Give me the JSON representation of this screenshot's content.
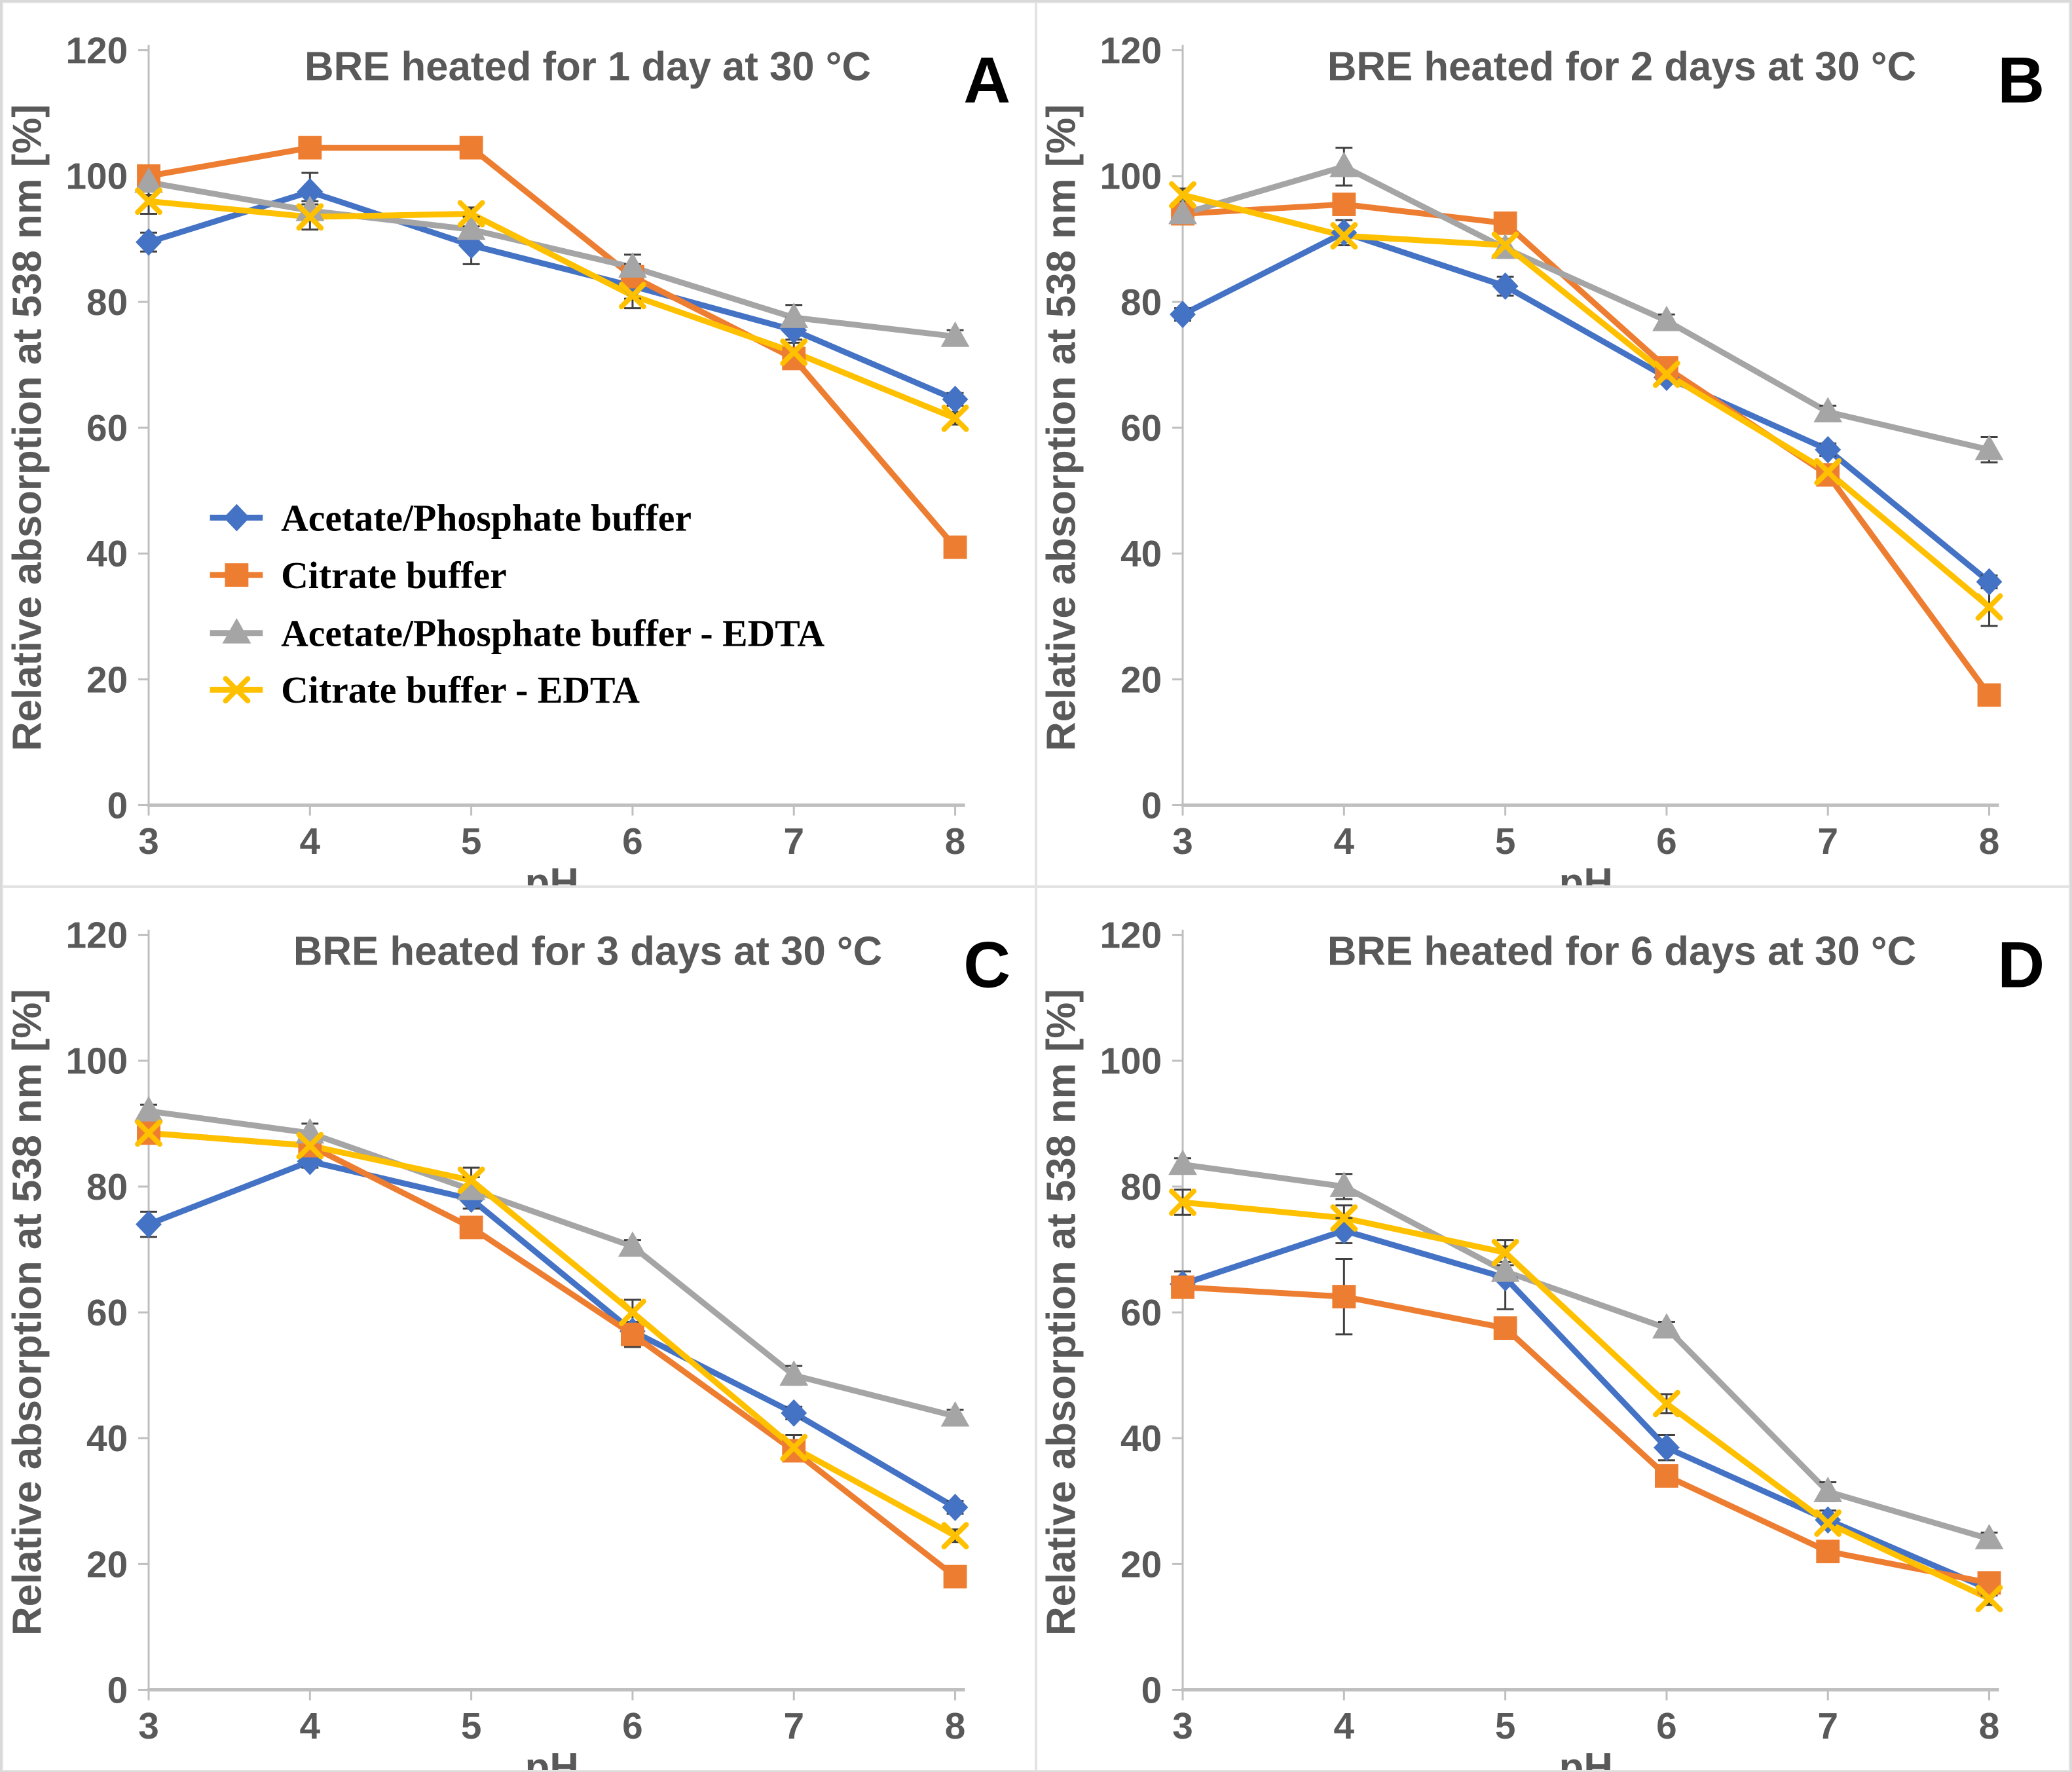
{
  "figure": {
    "background": "#ffffff",
    "border_color": "#d9d9d9",
    "panel_border_color": "#e3e3e3"
  },
  "style": {
    "axis_line_color": "#bfbfbf",
    "tick_label_color": "#595959",
    "title_color": "#595959",
    "panel_letter_color": "#000000",
    "error_bar_color": "#404040",
    "series_styles": {
      "ap": {
        "color": "#4472C4",
        "marker": "diamond",
        "icon_name": "blue-diamond-marker"
      },
      "cit": {
        "color": "#ED7D31",
        "marker": "square",
        "icon_name": "orange-square-marker"
      },
      "ap_edta": {
        "color": "#A5A5A5",
        "marker": "triangle",
        "icon_name": "gray-triangle-marker"
      },
      "cit_edta": {
        "color": "#FFC000",
        "marker": "x",
        "icon_name": "yellow-x-marker"
      }
    }
  },
  "legend": {
    "location": "panel A, middle left",
    "items": [
      {
        "label": "Acetate/Phosphate buffer",
        "style": "ap"
      },
      {
        "label": "Citrate buffer",
        "style": "cit"
      },
      {
        "label": "Acetate/Phosphate buffer - EDTA",
        "style": "ap_edta"
      },
      {
        "label": "Citrate buffer - EDTA",
        "style": "cit_edta"
      }
    ]
  },
  "chart_data": [
    {
      "type": "line",
      "panel_letter": "A",
      "title": "BRE heated for 1 day at 30 °C",
      "xlabel": "pH",
      "ylabel": "Relative absorption at 538 nm [%]",
      "x": [
        3,
        4,
        5,
        6,
        7,
        8
      ],
      "ylim": [
        0,
        120
      ],
      "y_ticks": [
        0,
        20,
        40,
        60,
        80,
        100,
        120
      ],
      "grid": false,
      "show_legend": true,
      "series": [
        {
          "name": "Acetate/Phosphate buffer",
          "style": "ap",
          "values": [
            89.5,
            97.5,
            89,
            82.5,
            75.5,
            64.5
          ],
          "errors": [
            1.5,
            3,
            3,
            2,
            2,
            1
          ]
        },
        {
          "name": "Citrate buffer",
          "style": "cit",
          "values": [
            100,
            104.5,
            104.5,
            84,
            71,
            41
          ],
          "errors": [
            1.5,
            1,
            1,
            2,
            1,
            1
          ]
        },
        {
          "name": "Acetate/Phosphate buffer - EDTA",
          "style": "ap_edta",
          "values": [
            99,
            94.5,
            91.5,
            85.5,
            77.5,
            74.5
          ],
          "errors": [
            2,
            1.5,
            2,
            2,
            2,
            1
          ]
        },
        {
          "name": "Citrate buffer - EDTA",
          "style": "cit_edta",
          "values": [
            96,
            93.5,
            94,
            81,
            72,
            61.5
          ],
          "errors": [
            2,
            2,
            1,
            2,
            2,
            1
          ]
        }
      ]
    },
    {
      "type": "line",
      "panel_letter": "B",
      "title": "BRE heated for 2 days at 30 °C",
      "xlabel": "pH",
      "ylabel": "Relative absorption at 538 nm [%]",
      "x": [
        3,
        4,
        5,
        6,
        7,
        8
      ],
      "ylim": [
        0,
        120
      ],
      "y_ticks": [
        0,
        20,
        40,
        60,
        80,
        100,
        120
      ],
      "grid": false,
      "show_legend": false,
      "series": [
        {
          "name": "Acetate/Phosphate buffer",
          "style": "ap",
          "values": [
            78,
            91,
            82.5,
            68,
            56.5,
            35.5
          ],
          "errors": [
            1,
            2,
            1.5,
            1,
            1,
            1
          ]
        },
        {
          "name": "Citrate buffer",
          "style": "cit",
          "values": [
            94,
            95.5,
            92.5,
            69.5,
            52.5,
            17.5
          ],
          "errors": [
            1,
            1,
            1,
            1.5,
            1,
            1
          ]
        },
        {
          "name": "Acetate/Phosphate buffer - EDTA",
          "style": "ap_edta",
          "values": [
            94,
            101.5,
            88.5,
            77,
            62.5,
            56.5
          ],
          "errors": [
            1.5,
            3,
            1.5,
            1,
            1,
            2
          ]
        },
        {
          "name": "Citrate buffer - EDTA",
          "style": "cit_edta",
          "values": [
            97,
            90.5,
            89,
            68.5,
            53,
            31.5
          ],
          "errors": [
            1,
            1,
            1,
            1.5,
            1,
            3
          ]
        }
      ]
    },
    {
      "type": "line",
      "panel_letter": "C",
      "title": "BRE heated for 3 days at 30 °C",
      "xlabel": "pH",
      "ylabel": "Relative absorption at 538 nm [%]",
      "x": [
        3,
        4,
        5,
        6,
        7,
        8
      ],
      "ylim": [
        0,
        120
      ],
      "y_ticks": [
        0,
        20,
        40,
        60,
        80,
        100,
        120
      ],
      "grid": false,
      "show_legend": false,
      "series": [
        {
          "name": "Acetate/Phosphate buffer",
          "style": "ap",
          "values": [
            74,
            84,
            78,
            57,
            44,
            29
          ],
          "errors": [
            2,
            1,
            1.5,
            1,
            1,
            1
          ]
        },
        {
          "name": "Citrate buffer",
          "style": "cit",
          "values": [
            88.5,
            86.5,
            73.5,
            56.5,
            38,
            18
          ],
          "errors": [
            1.5,
            1,
            1,
            2,
            1,
            1
          ]
        },
        {
          "name": "Acetate/Phosphate buffer - EDTA",
          "style": "ap_edta",
          "values": [
            92,
            88.5,
            79.5,
            70.5,
            50,
            43.5
          ],
          "errors": [
            1,
            1.5,
            2,
            1,
            1.5,
            1
          ]
        },
        {
          "name": "Citrate buffer - EDTA",
          "style": "cit_edta",
          "values": [
            88.5,
            86.5,
            81,
            60,
            38.5,
            24.5
          ],
          "errors": [
            1,
            1,
            2,
            2,
            2,
            1
          ]
        }
      ]
    },
    {
      "type": "line",
      "panel_letter": "D",
      "title": "BRE heated for 6 days at 30 °C",
      "xlabel": "pH",
      "ylabel": "Relative absorption at 538 nm [%]",
      "x": [
        3,
        4,
        5,
        6,
        7,
        8
      ],
      "ylim": [
        0,
        120
      ],
      "y_ticks": [
        0,
        20,
        40,
        60,
        80,
        100,
        120
      ],
      "grid": false,
      "show_legend": false,
      "series": [
        {
          "name": "Acetate/Phosphate buffer",
          "style": "ap",
          "values": [
            64.5,
            73,
            65.5,
            38.5,
            27,
            16
          ],
          "errors": [
            2,
            2,
            5,
            2,
            1.5,
            1
          ]
        },
        {
          "name": "Citrate buffer",
          "style": "cit",
          "values": [
            64,
            62.5,
            57.5,
            34,
            22,
            17
          ],
          "errors": [
            1.5,
            6,
            1,
            1,
            1,
            1
          ]
        },
        {
          "name": "Acetate/Phosphate buffer - EDTA",
          "style": "ap_edta",
          "values": [
            83.5,
            80,
            66.5,
            57.5,
            31.5,
            24
          ],
          "errors": [
            1,
            2,
            1.5,
            1,
            1.5,
            1
          ]
        },
        {
          "name": "Citrate buffer - EDTA",
          "style": "cit_edta",
          "values": [
            77.5,
            75,
            69.5,
            45.5,
            26.5,
            14.5
          ],
          "errors": [
            2,
            2,
            2,
            1.5,
            1,
            1
          ]
        }
      ]
    }
  ]
}
